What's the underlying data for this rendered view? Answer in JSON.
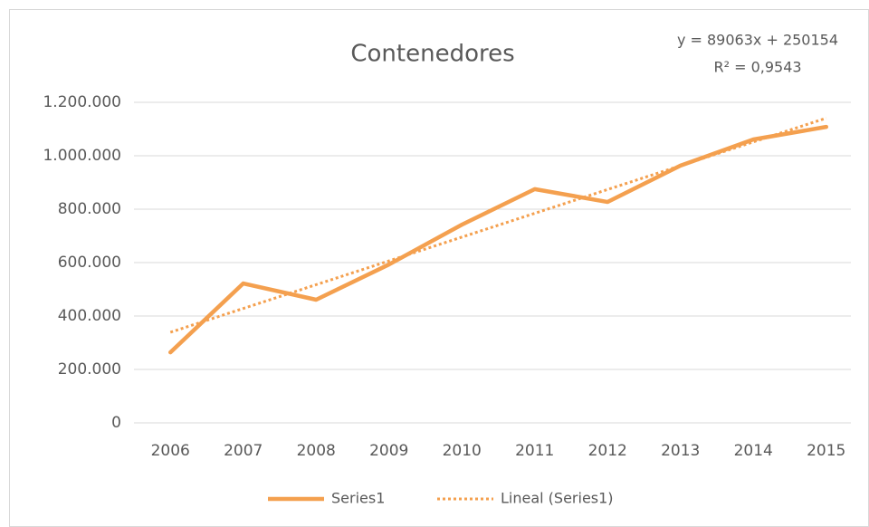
{
  "chart_data": {
    "type": "line",
    "title": "Contenedores",
    "annotations": [
      "y = 89063x + 250154",
      "R² = 0,9543"
    ],
    "categories": [
      "2006",
      "2007",
      "2008",
      "2009",
      "2010",
      "2011",
      "2012",
      "2013",
      "2014",
      "2015"
    ],
    "series": [
      {
        "name": "Series1",
        "color": "#f4a04f",
        "dashed": false,
        "values": [
          264000,
          522000,
          461000,
          593000,
          742000,
          875000,
          827000,
          963000,
          1061000,
          1108000
        ]
      },
      {
        "name": "Lineal (Series1)",
        "color": "#f4a04f",
        "dashed": true,
        "values": [
          339217,
          428280,
          517343,
          606406,
          695469,
          784532,
          873595,
          962658,
          1051721,
          1140784
        ]
      }
    ],
    "ylim": [
      0,
      1200000
    ],
    "yticks": [
      0,
      {
        "value": 200000,
        "label": "200.000"
      },
      {
        "value": 400000,
        "label": "400.000"
      },
      {
        "value": 600000,
        "label": "600.000"
      },
      {
        "value": 800000,
        "label": "800.000"
      },
      {
        "value": 1000000,
        "label": "1.000.000"
      },
      {
        "value": 1200000,
        "label": "1.200.000"
      }
    ],
    "grid": true,
    "legend": "bottom"
  }
}
